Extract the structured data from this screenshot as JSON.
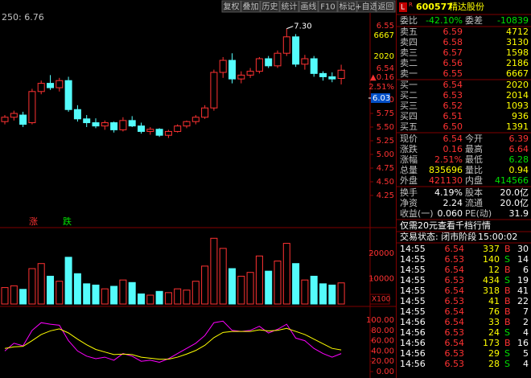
{
  "toolbar": [
    "复权",
    "叠加",
    "历史",
    "统计",
    "画线",
    "F10",
    "标记",
    "+自选",
    "返回"
  ],
  "chart_data": {
    "type": "candlestick",
    "header_text": "250: 6.76",
    "high_annotation": "7.30",
    "up_label": "涨",
    "down_label": "跌",
    "cursor_price": {
      "value": 6.03,
      "label": "6.03"
    },
    "overlay_labels": [
      "6.55",
      "6667",
      "2020",
      "6.54",
      "▲0.16",
      "2.51%"
    ],
    "up_color": "#ff3232",
    "down_color": "#54fcfc",
    "open": [
      5.6,
      5.68,
      5.72,
      5.58,
      6.15,
      6.3,
      6.22,
      6.35,
      5.82,
      5.65,
      5.58,
      5.52,
      5.58,
      5.45,
      5.62,
      5.52,
      5.42,
      5.46,
      5.35,
      5.42,
      5.52,
      5.6,
      5.68,
      5.85,
      6.5,
      6.72,
      6.38,
      6.45,
      6.52,
      6.75,
      6.62,
      6.85,
      7.15,
      6.65,
      6.75,
      6.48,
      6.42,
      6.39
    ],
    "high": [
      5.72,
      5.8,
      5.78,
      6.2,
      6.35,
      6.45,
      6.4,
      6.42,
      5.9,
      5.72,
      5.66,
      5.62,
      5.6,
      5.68,
      5.7,
      5.58,
      5.5,
      5.48,
      5.45,
      5.55,
      5.62,
      5.72,
      5.9,
      6.55,
      6.78,
      6.85,
      6.52,
      6.58,
      6.78,
      6.8,
      6.9,
      7.3,
      7.2,
      6.82,
      6.8,
      6.52,
      6.5,
      6.64
    ],
    "low": [
      5.55,
      5.62,
      5.5,
      5.55,
      6.1,
      6.18,
      6.15,
      5.78,
      5.6,
      5.5,
      5.48,
      5.45,
      5.4,
      5.42,
      5.5,
      5.38,
      5.36,
      5.32,
      5.3,
      5.4,
      5.48,
      5.55,
      5.65,
      5.8,
      6.4,
      6.3,
      6.3,
      6.4,
      6.48,
      6.58,
      6.58,
      6.8,
      6.6,
      6.55,
      6.42,
      6.35,
      6.32,
      6.28
    ],
    "close": [
      5.68,
      5.75,
      5.55,
      6.15,
      6.3,
      6.22,
      6.35,
      5.82,
      5.65,
      5.58,
      5.52,
      5.58,
      5.45,
      5.62,
      5.52,
      5.42,
      5.46,
      5.35,
      5.42,
      5.52,
      5.6,
      5.68,
      5.85,
      6.5,
      6.72,
      6.38,
      6.45,
      6.52,
      6.75,
      6.62,
      6.85,
      7.15,
      6.65,
      6.75,
      6.48,
      6.42,
      6.38,
      6.54
    ],
    "ylim": [
      4.0,
      7.5
    ],
    "yticks": [
      {
        "value": 4.25,
        "label": "4.25"
      },
      {
        "value": 4.5,
        "label": "4.50"
      },
      {
        "value": 4.75,
        "label": "4.75"
      },
      {
        "value": 5,
        "label": "5.00"
      },
      {
        "value": 5.25,
        "label": "5.25"
      },
      {
        "value": 5.5,
        "label": "5.50"
      },
      {
        "value": 5.75,
        "label": "5.75"
      },
      {
        "value": 6,
        "label": "6.00"
      }
    ],
    "volume": [
      6500,
      7200,
      5800,
      14000,
      16000,
      11000,
      9000,
      18500,
      12000,
      8000,
      7500,
      6000,
      7000,
      9500,
      8500,
      4000,
      3500,
      5000,
      4500,
      6000,
      5500,
      9000,
      15000,
      26000,
      22000,
      14000,
      11000,
      12500,
      19000,
      13000,
      17000,
      24000,
      16000,
      9500,
      11000,
      8000,
      7500,
      8357
    ],
    "volume_ylim": [
      0,
      28000
    ],
    "volume_yticks": [
      20000,
      10000
    ],
    "volume_unit": "X100",
    "kdj_series": [
      {
        "name": "K",
        "color": "#ff00ff",
        "values": [
          40,
          55,
          50,
          80,
          95,
          92,
          90,
          60,
          40,
          30,
          25,
          28,
          22,
          35,
          30,
          20,
          22,
          18,
          25,
          35,
          45,
          55,
          70,
          95,
          98,
          80,
          78,
          80,
          88,
          75,
          82,
          92,
          65,
          60,
          45,
          35,
          28,
          35
        ]
      },
      {
        "name": "D",
        "color": "#ffff00",
        "values": [
          45,
          48,
          49,
          60,
          72,
          79,
          83,
          75,
          63,
          52,
          43,
          38,
          33,
          34,
          33,
          28,
          26,
          24,
          24,
          28,
          34,
          41,
          51,
          66,
          76,
          78,
          78,
          78,
          81,
          79,
          80,
          84,
          78,
          72,
          63,
          54,
          45,
          42
        ]
      }
    ],
    "kdj_ylim": [
      0,
      100
    ],
    "kdj_yticks": [
      {
        "value": 100,
        "label": "100.00"
      },
      {
        "value": 80,
        "label": "80.00"
      },
      {
        "value": 60,
        "label": "60.00"
      },
      {
        "value": 40,
        "label": "40.00"
      },
      {
        "value": 20,
        "label": "20.00"
      },
      {
        "value": 0,
        "label": "0.00"
      }
    ]
  },
  "quote": {
    "badge_l": "L",
    "badge_r": "R",
    "code": "600577",
    "name": "精达股份",
    "ratio": [
      "委比",
      "-42.10%",
      "委差",
      "-10839"
    ],
    "asks": [
      [
        "卖五",
        "6.59",
        "4712"
      ],
      [
        "卖四",
        "6.58",
        "3130"
      ],
      [
        "卖三",
        "6.57",
        "1598"
      ],
      [
        "卖二",
        "6.56",
        "2186"
      ],
      [
        "卖一",
        "6.55",
        "6667"
      ]
    ],
    "bids": [
      [
        "买一",
        "6.54",
        "2020"
      ],
      [
        "买二",
        "6.53",
        "2014"
      ],
      [
        "买三",
        "6.52",
        "1093"
      ],
      [
        "买四",
        "6.51",
        "936"
      ],
      [
        "买五",
        "6.50",
        "1391"
      ]
    ],
    "stats": [
      [
        "现价",
        "6.54",
        "今开",
        "6.39"
      ],
      [
        "涨跌",
        "0.16",
        "最高",
        "6.64"
      ],
      [
        "涨幅",
        "2.51%",
        "最低",
        "6.28"
      ],
      [
        "总量",
        "835696",
        "量比",
        "0.94"
      ],
      [
        "外盘",
        "421130",
        "内盘",
        "414566"
      ]
    ],
    "info": [
      [
        "换手",
        "4.19%",
        "股本",
        "20.0亿"
      ],
      [
        "净资",
        "2.24",
        "流通",
        "20.0亿"
      ],
      [
        "收益(一)",
        "0.060",
        "PE(动)",
        "31.9"
      ]
    ],
    "notice": "仅需20元查看千档行情",
    "status_label": "交易状态: 闭市阶段",
    "status_time": "15:00:02",
    "trades": [
      [
        "14:55",
        "6.54",
        "337",
        "B",
        "30"
      ],
      [
        "14:55",
        "6.53",
        "140",
        "S",
        "14"
      ],
      [
        "14:55",
        "6.54",
        "12",
        "B",
        "6"
      ],
      [
        "14:55",
        "6.53",
        "434",
        "S",
        "19"
      ],
      [
        "14:55",
        "6.54",
        "318",
        "B",
        "41"
      ],
      [
        "14:55",
        "6.53",
        "41",
        "B",
        "22"
      ],
      [
        "14:55",
        "6.54",
        "76",
        "B",
        "7"
      ],
      [
        "14:56",
        "6.54",
        "33",
        "B",
        "2"
      ],
      [
        "14:56",
        "6.53",
        "24",
        "S",
        "4"
      ],
      [
        "14:56",
        "6.54",
        "173",
        "B",
        "16"
      ],
      [
        "14:56",
        "6.53",
        "29",
        "S",
        "5"
      ],
      [
        "14:56",
        "6.53",
        "28",
        "S",
        "4"
      ]
    ]
  }
}
